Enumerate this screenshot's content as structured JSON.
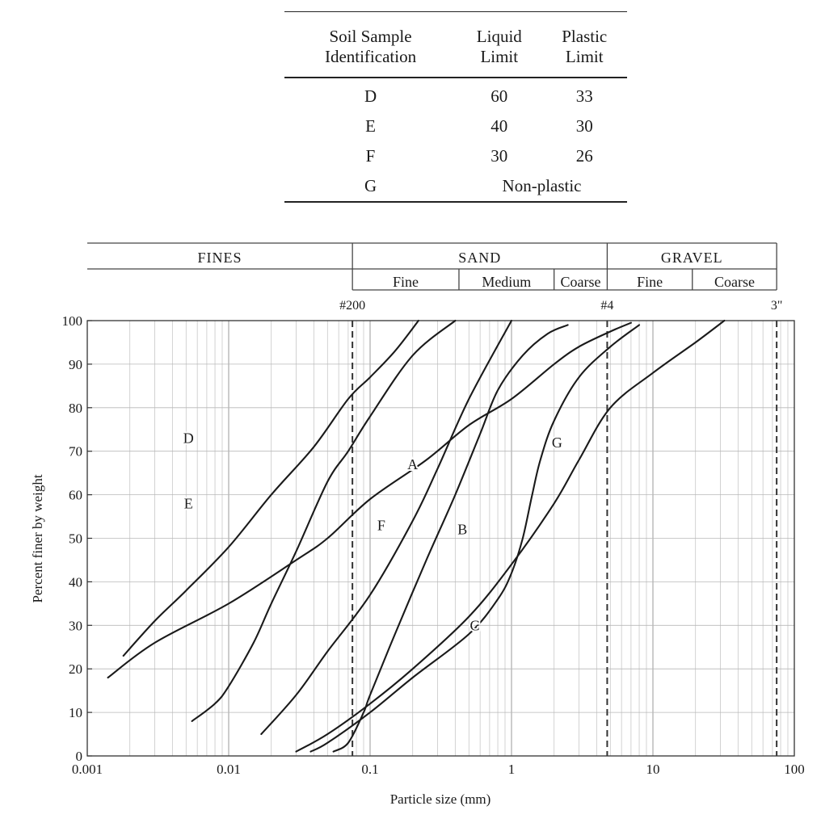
{
  "table": {
    "headers": [
      "Soil Sample\nIdentification",
      "Liquid\nLimit",
      "Plastic\nLimit"
    ],
    "rows": [
      [
        "D",
        "60",
        "33"
      ],
      [
        "E",
        "40",
        "30"
      ],
      [
        "F",
        "30",
        "26"
      ],
      [
        "G",
        "Non-plastic"
      ]
    ]
  },
  "classification": {
    "groups": [
      {
        "label": "FINES",
        "from": 0.001,
        "to": 0.075
      },
      {
        "label": "SAND",
        "from": 0.075,
        "to": 4.75
      },
      {
        "label": "GRAVEL",
        "from": 4.75,
        "to": 75
      }
    ],
    "subgroups": [
      {
        "label": "Fine",
        "from": 0.075,
        "to": 0.425
      },
      {
        "label": "Medium",
        "from": 0.425,
        "to": 2.0
      },
      {
        "label": "Coarse",
        "from": 2.0,
        "to": 4.75
      },
      {
        "label": "Fine",
        "from": 4.75,
        "to": 19
      },
      {
        "label": "Coarse",
        "from": 19,
        "to": 75
      }
    ],
    "sieves": [
      {
        "label": "#200",
        "size": 0.075
      },
      {
        "label": "#4",
        "size": 4.75
      },
      {
        "label": "3\"",
        "size": 75
      }
    ]
  },
  "chart_data": {
    "type": "line",
    "title": "",
    "xlabel": "Particle size (mm)",
    "ylabel": "Percent finer by weight",
    "xscale": "log",
    "xlim": [
      0.001,
      100
    ],
    "ylim": [
      0,
      100
    ],
    "xticks": [
      0.001,
      0.01,
      0.1,
      1,
      10,
      100
    ],
    "xtick_labels": [
      "0.001",
      "0.01",
      "0.1",
      "1",
      "10",
      "100"
    ],
    "yticks": [
      0,
      10,
      20,
      30,
      40,
      50,
      60,
      70,
      80,
      90,
      100
    ],
    "ytick_labels": [
      "0",
      "10",
      "20",
      "30",
      "40",
      "50",
      "60",
      "70",
      "80",
      "90",
      "100"
    ],
    "grid": true,
    "series": [
      {
        "name": "A",
        "label_at": [
          0.2,
          67
        ],
        "points": [
          [
            0.0014,
            18
          ],
          [
            0.003,
            26
          ],
          [
            0.01,
            35
          ],
          [
            0.03,
            45
          ],
          [
            0.05,
            50
          ],
          [
            0.1,
            59
          ],
          [
            0.25,
            68
          ],
          [
            0.5,
            76
          ],
          [
            1,
            82
          ],
          [
            2,
            90
          ],
          [
            3,
            94
          ],
          [
            5,
            97.5
          ],
          [
            7,
            99.5
          ]
        ]
      },
      {
        "name": "B",
        "label_at": [
          0.45,
          52
        ],
        "points": [
          [
            0.055,
            1
          ],
          [
            0.07,
            3
          ],
          [
            0.09,
            10
          ],
          [
            0.1,
            14
          ],
          [
            0.15,
            28
          ],
          [
            0.25,
            45
          ],
          [
            0.4,
            60
          ],
          [
            0.6,
            74
          ],
          [
            0.8,
            84
          ],
          [
            1.2,
            92
          ],
          [
            1.8,
            97
          ],
          [
            2.5,
            99
          ]
        ]
      },
      {
        "name": "C",
        "label_at": [
          0.55,
          30
        ],
        "points": [
          [
            0.03,
            1
          ],
          [
            0.05,
            5
          ],
          [
            0.1,
            12
          ],
          [
            0.2,
            20
          ],
          [
            0.5,
            32
          ],
          [
            1,
            44
          ],
          [
            2,
            58
          ],
          [
            3,
            68
          ],
          [
            5,
            80
          ],
          [
            10,
            88
          ],
          [
            20,
            95
          ],
          [
            32,
            100
          ]
        ]
      },
      {
        "name": "D",
        "label_at": [
          0.0052,
          73
        ],
        "points": [
          [
            0.0018,
            23
          ],
          [
            0.003,
            31
          ],
          [
            0.005,
            38
          ],
          [
            0.01,
            48
          ],
          [
            0.02,
            60
          ],
          [
            0.04,
            71
          ],
          [
            0.07,
            82
          ],
          [
            0.1,
            87
          ],
          [
            0.15,
            93
          ],
          [
            0.22,
            100
          ]
        ]
      },
      {
        "name": "E",
        "label_at": [
          0.0052,
          58
        ],
        "points": [
          [
            0.0055,
            8
          ],
          [
            0.008,
            12
          ],
          [
            0.01,
            16
          ],
          [
            0.015,
            26
          ],
          [
            0.02,
            35
          ],
          [
            0.03,
            47
          ],
          [
            0.05,
            63
          ],
          [
            0.07,
            70
          ],
          [
            0.1,
            78
          ],
          [
            0.2,
            92
          ],
          [
            0.4,
            100
          ]
        ]
      },
      {
        "name": "F",
        "label_at": [
          0.12,
          53
        ],
        "points": [
          [
            0.017,
            5
          ],
          [
            0.03,
            14
          ],
          [
            0.05,
            24
          ],
          [
            0.1,
            37
          ],
          [
            0.2,
            54
          ],
          [
            0.3,
            66
          ],
          [
            0.5,
            82
          ],
          [
            1,
            100
          ]
        ]
      },
      {
        "name": "G",
        "label_at": [
          2.1,
          72
        ],
        "points": [
          [
            0.038,
            1
          ],
          [
            0.05,
            3
          ],
          [
            0.1,
            10
          ],
          [
            0.2,
            18
          ],
          [
            0.5,
            28
          ],
          [
            0.8,
            36
          ],
          [
            1,
            42
          ],
          [
            1.2,
            50
          ],
          [
            1.4,
            60
          ],
          [
            1.6,
            68
          ],
          [
            2,
            77
          ],
          [
            3,
            87
          ],
          [
            5,
            94
          ],
          [
            8,
            99
          ]
        ]
      }
    ]
  }
}
